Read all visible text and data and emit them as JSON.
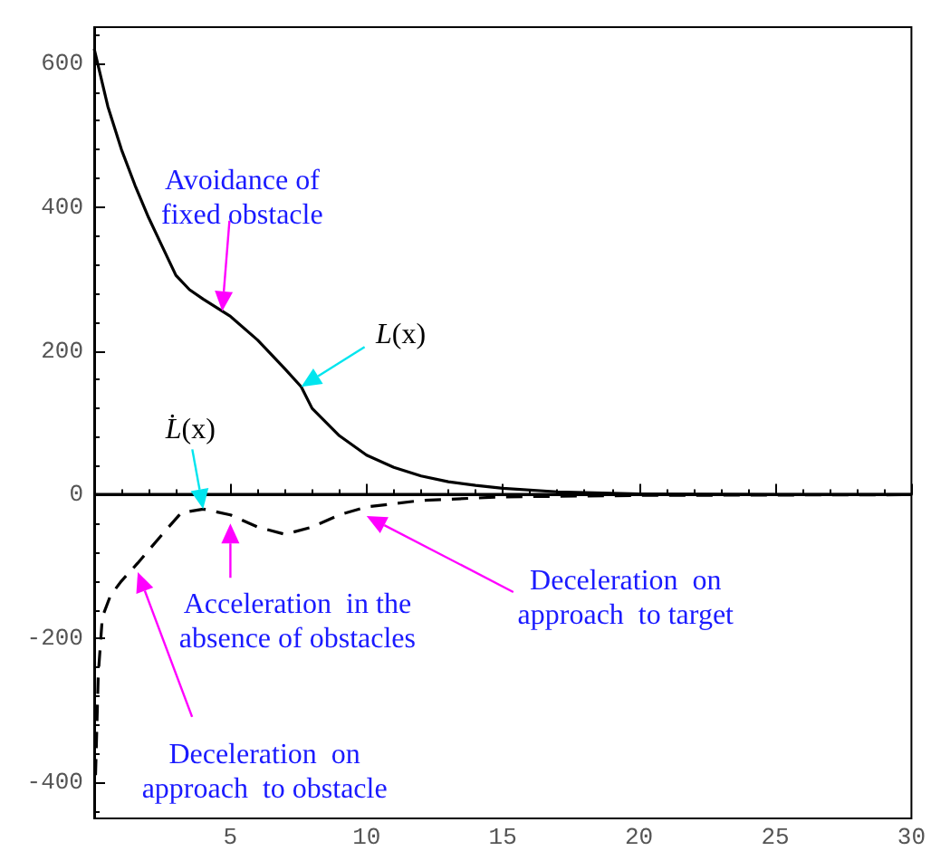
{
  "chart_data": {
    "type": "line",
    "xlim": [
      0,
      30
    ],
    "xticks": [
      5,
      10,
      15,
      20,
      25,
      30
    ],
    "ylim": [
      -450,
      650
    ],
    "yticks": [
      -400,
      -200,
      0,
      200,
      400,
      600
    ],
    "grid": false,
    "legend": false,
    "marker": "none",
    "ref_lines": [
      {
        "axis": "y",
        "value": 0,
        "color": "#000000"
      }
    ],
    "series": [
      {
        "name": "L(x)",
        "color": "#000000",
        "line_style": "solid",
        "x": [
          0,
          0.5,
          1,
          1.5,
          2,
          2.5,
          3,
          3.5,
          4,
          5,
          6,
          7,
          7.6,
          8,
          9,
          10,
          11,
          12,
          13,
          14,
          15,
          17,
          20,
          25,
          30
        ],
        "values": [
          620,
          540,
          480,
          430,
          385,
          345,
          305,
          285,
          272,
          248,
          215,
          175,
          150,
          120,
          82,
          55,
          38,
          26,
          18,
          13,
          9,
          4,
          1,
          0,
          0
        ]
      },
      {
        "name": "L̇(x)",
        "color": "#000000",
        "line_style": "dashed",
        "x": [
          0.05,
          0.15,
          0.3,
          0.6,
          1,
          1.6,
          2.5,
          3.2,
          4,
          5,
          6,
          7,
          8,
          9,
          10,
          12,
          15,
          20,
          30
        ],
        "values": [
          -390,
          -250,
          -170,
          -140,
          -120,
          -95,
          -55,
          -25,
          -20,
          -28,
          -45,
          -55,
          -45,
          -28,
          -17,
          -8,
          -3,
          -1,
          0
        ]
      }
    ],
    "annotations": [
      {
        "text": "Avoidance of\nfixed obstacle",
        "x": 4.7,
        "y": 255
      },
      {
        "text": "Acceleration  in the\nabsence of obstacles",
        "x": 5,
        "y": -40
      },
      "Deceleration  on\napproach  to obstacle",
      "Deceleration  on\napproach  to target"
    ]
  }
}
